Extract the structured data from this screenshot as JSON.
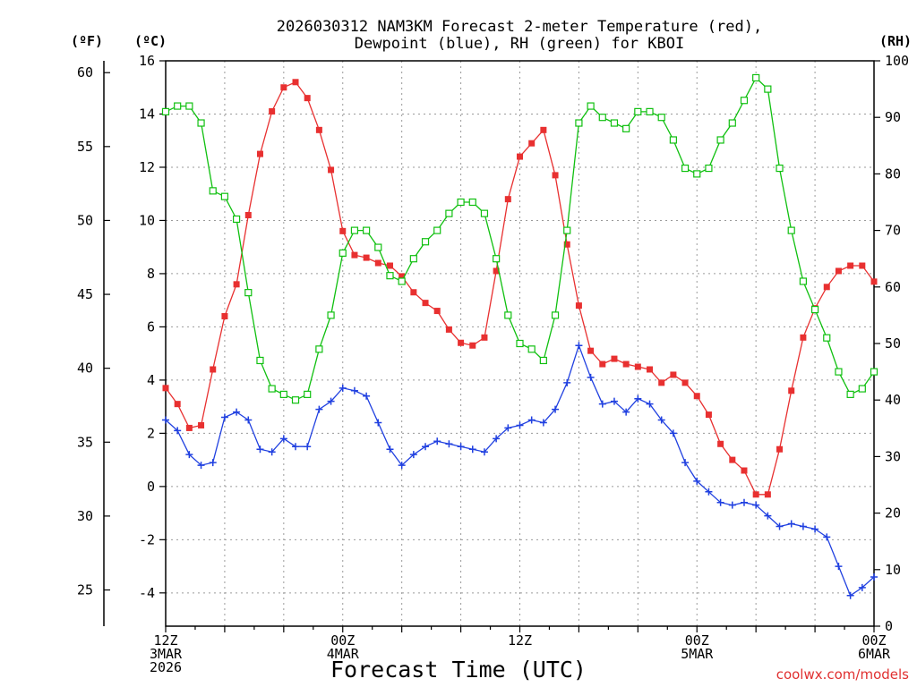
{
  "chart_data": {
    "type": "line",
    "title_lines": [
      "2026030312 NAM3KM Forecast 2-meter Temperature (red),",
      "Dewpoint (blue), RH (green) for KBOI"
    ],
    "units": {
      "fahrenheit": "(ºF)",
      "celsius": "(ºC)",
      "rh": "(RH)"
    },
    "xlabel": "Forecast Time (UTC)",
    "credit": "coolwx.com/models",
    "x_range_hours": [
      0,
      72
    ],
    "y_celsius_range": [
      -5.25,
      16
    ],
    "y_celsius_ticks": [
      -4,
      -2,
      0,
      2,
      4,
      6,
      8,
      10,
      12,
      14,
      16
    ],
    "y_fahrenheit_ticks": [
      25,
      30,
      35,
      40,
      45,
      50,
      55,
      60
    ],
    "y_rh_range": [
      0,
      100
    ],
    "y_rh_ticks": [
      0,
      10,
      20,
      30,
      40,
      50,
      60,
      70,
      80,
      90,
      100
    ],
    "x_ticks": [
      {
        "hour": 0,
        "lines": [
          "12Z",
          "3MAR",
          "2026"
        ]
      },
      {
        "hour": 18,
        "lines": [
          "00Z",
          "4MAR"
        ]
      },
      {
        "hour": 36,
        "lines": [
          "12Z"
        ]
      },
      {
        "hour": 54,
        "lines": [
          "00Z",
          "5MAR"
        ]
      },
      {
        "hour": 72,
        "lines": [
          "00Z",
          "6MAR"
        ]
      }
    ],
    "series": [
      {
        "name": "Temperature",
        "unit": "C",
        "color": "#e83030",
        "marker": "filled-square",
        "values": [
          3.7,
          3.1,
          2.2,
          2.3,
          4.4,
          6.4,
          7.6,
          10.2,
          12.5,
          14.1,
          15.0,
          15.2,
          14.6,
          13.4,
          11.9,
          9.6,
          8.7,
          8.6,
          8.4,
          8.3,
          7.9,
          7.3,
          6.9,
          6.6,
          5.9,
          5.4,
          5.3,
          5.6,
          8.1,
          10.8,
          12.4,
          12.9,
          13.4,
          11.7,
          9.1,
          6.8,
          5.1,
          4.6,
          4.8,
          4.6,
          4.5,
          4.4,
          3.9,
          4.2,
          3.9,
          3.4,
          2.7,
          1.6,
          1.0,
          0.6,
          -0.3,
          -0.3,
          1.4,
          3.6,
          5.6,
          6.7,
          7.5,
          8.1,
          8.3,
          8.3,
          7.7
        ]
      },
      {
        "name": "Dewpoint",
        "unit": "C",
        "color": "#2040e0",
        "marker": "plus",
        "values": [
          2.5,
          2.1,
          1.2,
          0.8,
          0.9,
          2.6,
          2.8,
          2.5,
          1.4,
          1.3,
          1.8,
          1.5,
          1.5,
          2.9,
          3.2,
          3.7,
          3.6,
          3.4,
          2.4,
          1.4,
          0.8,
          1.2,
          1.5,
          1.7,
          1.6,
          1.5,
          1.4,
          1.3,
          1.8,
          2.2,
          2.3,
          2.5,
          2.4,
          2.9,
          3.9,
          5.3,
          4.1,
          3.1,
          3.2,
          2.8,
          3.3,
          3.1,
          2.5,
          2.0,
          0.9,
          0.2,
          -0.2,
          -0.6,
          -0.7,
          -0.6,
          -0.7,
          -1.1,
          -1.5,
          -1.4,
          -1.5,
          -1.6,
          -1.9,
          -3.0,
          -4.1,
          -3.8,
          -3.4
        ]
      },
      {
        "name": "RH",
        "unit": "%",
        "color": "#10c010",
        "marker": "open-square",
        "values": [
          91,
          92,
          92,
          89,
          77,
          76,
          72,
          59,
          47,
          42,
          41,
          40,
          41,
          49,
          55,
          66,
          70,
          70,
          67,
          62,
          61,
          65,
          68,
          70,
          73,
          75,
          75,
          73,
          65,
          55,
          50,
          49,
          47,
          55,
          70,
          89,
          92,
          90,
          89,
          88,
          91,
          91,
          90,
          86,
          81,
          80,
          81,
          86,
          89,
          93,
          97,
          95,
          81,
          70,
          61,
          56,
          51,
          45,
          41,
          42,
          45
        ]
      }
    ]
  }
}
